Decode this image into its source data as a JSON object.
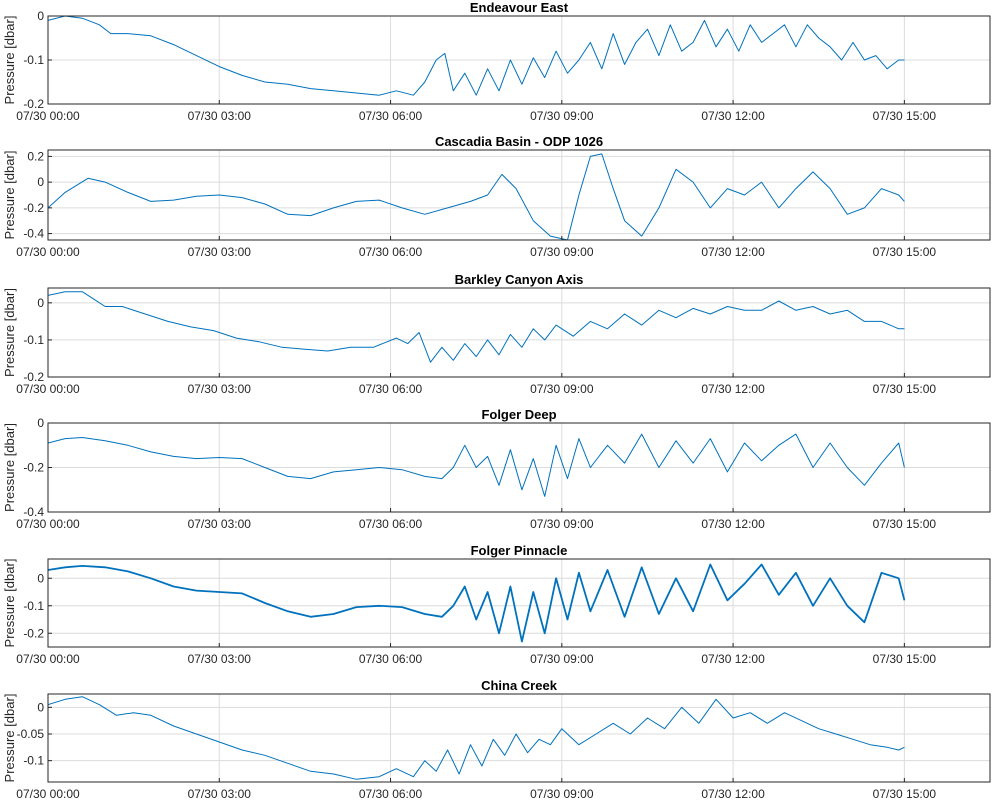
{
  "figure": {
    "series_color": "#0072BD",
    "grid_color": "#dcdcdc",
    "axes_color": "#262626"
  },
  "chart_data": [
    {
      "type": "line",
      "title": "Endeavour East",
      "ylabel": "Pressure [dbar]",
      "xlabel": "",
      "grid": true,
      "x_unit": "hours since 07/30 00:00",
      "xlim": [
        0,
        16.5
      ],
      "ylim": [
        -0.2,
        0
      ],
      "xticks": [
        0,
        3,
        6,
        9,
        12,
        15
      ],
      "xtick_labels": [
        "07/30 00:00",
        "07/30 03:00",
        "07/30 06:00",
        "07/30 09:00",
        "07/30 12:00",
        "07/30 15:00"
      ],
      "yticks": [
        -0.2,
        -0.1,
        0
      ],
      "ytick_labels": [
        "-0.2",
        "-0.1",
        "0"
      ],
      "series": [
        {
          "x": [
            0,
            0.3,
            0.6,
            0.9,
            1.1,
            1.4,
            1.8,
            2.2,
            2.6,
            3.0,
            3.4,
            3.8,
            4.2,
            4.6,
            5.0,
            5.4,
            5.8,
            6.1,
            6.4,
            6.6,
            6.8,
            6.95,
            7.1,
            7.3,
            7.5,
            7.7,
            7.9,
            8.1,
            8.3,
            8.5,
            8.7,
            8.9,
            9.1,
            9.3,
            9.5,
            9.7,
            9.9,
            10.1,
            10.3,
            10.5,
            10.7,
            10.9,
            11.1,
            11.3,
            11.5,
            11.7,
            11.9,
            12.1,
            12.3,
            12.5,
            12.7,
            12.9,
            13.1,
            13.3,
            13.5,
            13.7,
            13.9,
            14.1,
            14.3,
            14.5,
            14.7,
            14.9,
            15.0
          ],
          "y": [
            -0.01,
            0.0,
            -0.005,
            -0.02,
            -0.04,
            -0.04,
            -0.045,
            -0.065,
            -0.09,
            -0.115,
            -0.135,
            -0.15,
            -0.155,
            -0.165,
            -0.17,
            -0.175,
            -0.18,
            -0.17,
            -0.18,
            -0.15,
            -0.1,
            -0.085,
            -0.17,
            -0.13,
            -0.18,
            -0.12,
            -0.17,
            -0.1,
            -0.155,
            -0.095,
            -0.14,
            -0.08,
            -0.13,
            -0.1,
            -0.06,
            -0.12,
            -0.04,
            -0.11,
            -0.06,
            -0.03,
            -0.09,
            -0.02,
            -0.08,
            -0.06,
            -0.01,
            -0.07,
            -0.03,
            -0.08,
            -0.02,
            -0.06,
            -0.04,
            -0.02,
            -0.07,
            -0.02,
            -0.05,
            -0.07,
            -0.1,
            -0.06,
            -0.1,
            -0.09,
            -0.12,
            -0.1,
            -0.1
          ]
        }
      ]
    },
    {
      "type": "line",
      "title": "Cascadia Basin - ODP 1026",
      "ylabel": "Pressure [dbar]",
      "xlabel": "",
      "grid": true,
      "x_unit": "hours since 07/30 00:00",
      "xlim": [
        0,
        16.5
      ],
      "ylim": [
        -0.45,
        0.25
      ],
      "xticks": [
        0,
        3,
        6,
        9,
        12,
        15
      ],
      "xtick_labels": [
        "07/30 00:00",
        "07/30 03:00",
        "07/30 06:00",
        "07/30 09:00",
        "07/30 12:00",
        "07/30 15:00"
      ],
      "yticks": [
        -0.4,
        -0.2,
        0,
        0.2
      ],
      "ytick_labels": [
        "-0.4",
        "-0.2",
        "0",
        "0.2"
      ],
      "series": [
        {
          "x": [
            0,
            0.3,
            0.7,
            1.0,
            1.4,
            1.8,
            2.2,
            2.6,
            3.0,
            3.4,
            3.8,
            4.2,
            4.6,
            5.0,
            5.4,
            5.8,
            6.2,
            6.6,
            7.0,
            7.4,
            7.7,
            7.95,
            8.2,
            8.5,
            8.8,
            9.1,
            9.3,
            9.5,
            9.7,
            9.9,
            10.1,
            10.4,
            10.7,
            11.0,
            11.3,
            11.6,
            11.9,
            12.2,
            12.5,
            12.8,
            13.1,
            13.4,
            13.7,
            14.0,
            14.3,
            14.6,
            14.9,
            15.0
          ],
          "y": [
            -0.2,
            -0.08,
            0.03,
            0.0,
            -0.08,
            -0.15,
            -0.14,
            -0.11,
            -0.1,
            -0.12,
            -0.17,
            -0.25,
            -0.26,
            -0.2,
            -0.15,
            -0.14,
            -0.2,
            -0.25,
            -0.2,
            -0.15,
            -0.1,
            0.06,
            -0.05,
            -0.3,
            -0.42,
            -0.45,
            -0.1,
            0.2,
            0.22,
            -0.05,
            -0.3,
            -0.42,
            -0.2,
            0.1,
            0.0,
            -0.2,
            -0.05,
            -0.1,
            0.0,
            -0.2,
            -0.05,
            0.08,
            -0.05,
            -0.25,
            -0.2,
            -0.05,
            -0.1,
            -0.15
          ]
        }
      ]
    },
    {
      "type": "line",
      "title": "Barkley Canyon Axis",
      "ylabel": "Pressure [dbar]",
      "xlabel": "",
      "grid": true,
      "x_unit": "hours since 07/30 00:00",
      "xlim": [
        0,
        16.5
      ],
      "ylim": [
        -0.2,
        0.04
      ],
      "xticks": [
        0,
        3,
        6,
        9,
        12,
        15
      ],
      "xtick_labels": [
        "07/30 00:00",
        "07/30 03:00",
        "07/30 06:00",
        "07/30 09:00",
        "07/30 12:00",
        "07/30 15:00"
      ],
      "yticks": [
        -0.2,
        -0.1,
        0
      ],
      "ytick_labels": [
        "-0.2",
        "-0.1",
        "0"
      ],
      "series": [
        {
          "x": [
            0,
            0.3,
            0.6,
            0.8,
            1.0,
            1.3,
            1.7,
            2.1,
            2.5,
            2.9,
            3.3,
            3.7,
            4.1,
            4.5,
            4.9,
            5.3,
            5.7,
            6.1,
            6.3,
            6.5,
            6.7,
            6.9,
            7.1,
            7.3,
            7.5,
            7.7,
            7.9,
            8.1,
            8.3,
            8.5,
            8.7,
            8.9,
            9.2,
            9.5,
            9.8,
            10.1,
            10.4,
            10.7,
            11.0,
            11.3,
            11.6,
            11.9,
            12.2,
            12.5,
            12.8,
            13.1,
            13.4,
            13.7,
            14.0,
            14.3,
            14.6,
            14.9,
            15.0
          ],
          "y": [
            0.02,
            0.03,
            0.03,
            0.01,
            -0.01,
            -0.01,
            -0.03,
            -0.05,
            -0.065,
            -0.075,
            -0.095,
            -0.105,
            -0.12,
            -0.125,
            -0.13,
            -0.12,
            -0.12,
            -0.095,
            -0.11,
            -0.08,
            -0.16,
            -0.12,
            -0.155,
            -0.11,
            -0.145,
            -0.1,
            -0.14,
            -0.085,
            -0.12,
            -0.07,
            -0.1,
            -0.06,
            -0.09,
            -0.05,
            -0.07,
            -0.03,
            -0.06,
            -0.02,
            -0.04,
            -0.015,
            -0.03,
            -0.01,
            -0.02,
            -0.02,
            0.005,
            -0.02,
            -0.01,
            -0.03,
            -0.02,
            -0.05,
            -0.05,
            -0.07,
            -0.07
          ]
        }
      ]
    },
    {
      "type": "line",
      "title": "Folger Deep",
      "ylabel": "Pressure [dbar]",
      "xlabel": "",
      "grid": true,
      "x_unit": "hours since 07/30 00:00",
      "xlim": [
        0,
        16.5
      ],
      "ylim": [
        -0.4,
        0
      ],
      "xticks": [
        0,
        3,
        6,
        9,
        12,
        15
      ],
      "xtick_labels": [
        "07/30 00:00",
        "07/30 03:00",
        "07/30 06:00",
        "07/30 09:00",
        "07/30 12:00",
        "07/30 15:00"
      ],
      "yticks": [
        -0.4,
        -0.2,
        0
      ],
      "ytick_labels": [
        "-0.4",
        "-0.2",
        "0"
      ],
      "series": [
        {
          "x": [
            0,
            0.3,
            0.6,
            1.0,
            1.4,
            1.8,
            2.2,
            2.6,
            3.0,
            3.4,
            3.8,
            4.2,
            4.6,
            5.0,
            5.4,
            5.8,
            6.2,
            6.6,
            6.9,
            7.1,
            7.3,
            7.5,
            7.7,
            7.9,
            8.1,
            8.3,
            8.5,
            8.7,
            8.9,
            9.1,
            9.3,
            9.5,
            9.8,
            10.1,
            10.4,
            10.7,
            11.0,
            11.3,
            11.6,
            11.9,
            12.2,
            12.5,
            12.8,
            13.1,
            13.4,
            13.7,
            14.0,
            14.3,
            14.6,
            14.9,
            15.0
          ],
          "y": [
            -0.09,
            -0.07,
            -0.065,
            -0.08,
            -0.1,
            -0.13,
            -0.15,
            -0.16,
            -0.155,
            -0.16,
            -0.2,
            -0.24,
            -0.25,
            -0.22,
            -0.21,
            -0.2,
            -0.21,
            -0.24,
            -0.25,
            -0.2,
            -0.1,
            -0.2,
            -0.15,
            -0.28,
            -0.12,
            -0.3,
            -0.16,
            -0.33,
            -0.1,
            -0.25,
            -0.07,
            -0.2,
            -0.1,
            -0.18,
            -0.05,
            -0.2,
            -0.08,
            -0.18,
            -0.07,
            -0.22,
            -0.09,
            -0.17,
            -0.1,
            -0.05,
            -0.2,
            -0.09,
            -0.2,
            -0.28,
            -0.18,
            -0.09,
            -0.2
          ]
        }
      ]
    },
    {
      "type": "line",
      "title": "Folger Pinnacle",
      "ylabel": "Pressure [dbar]",
      "xlabel": "",
      "grid": true,
      "x_unit": "hours since 07/30 00:00",
      "xlim": [
        0,
        16.5
      ],
      "ylim": [
        -0.25,
        0.07
      ],
      "xticks": [
        0,
        3,
        6,
        9,
        12,
        15
      ],
      "xtick_labels": [
        "07/30 00:00",
        "07/30 03:00",
        "07/30 06:00",
        "07/30 09:00",
        "07/30 12:00",
        "07/30 15:00"
      ],
      "yticks": [
        -0.2,
        -0.1,
        0
      ],
      "ytick_labels": [
        "-0.2",
        "-0.1",
        "0"
      ],
      "series": [
        {
          "x": [
            0,
            0.3,
            0.6,
            1.0,
            1.4,
            1.8,
            2.2,
            2.6,
            3.0,
            3.4,
            3.8,
            4.2,
            4.6,
            5.0,
            5.4,
            5.8,
            6.2,
            6.6,
            6.9,
            7.1,
            7.3,
            7.5,
            7.7,
            7.9,
            8.1,
            8.3,
            8.5,
            8.7,
            8.9,
            9.1,
            9.3,
            9.5,
            9.8,
            10.1,
            10.4,
            10.7,
            11.0,
            11.3,
            11.6,
            11.9,
            12.2,
            12.5,
            12.8,
            13.1,
            13.4,
            13.7,
            14.0,
            14.3,
            14.6,
            14.9,
            15.0
          ],
          "y": [
            0.03,
            0.04,
            0.045,
            0.04,
            0.025,
            0.0,
            -0.03,
            -0.045,
            -0.05,
            -0.055,
            -0.09,
            -0.12,
            -0.14,
            -0.13,
            -0.105,
            -0.1,
            -0.105,
            -0.13,
            -0.14,
            -0.1,
            -0.03,
            -0.15,
            -0.05,
            -0.2,
            -0.03,
            -0.23,
            -0.05,
            -0.2,
            0.0,
            -0.15,
            0.02,
            -0.12,
            0.03,
            -0.14,
            0.04,
            -0.13,
            0.0,
            -0.12,
            0.05,
            -0.08,
            -0.02,
            0.05,
            -0.06,
            0.02,
            -0.1,
            0.0,
            -0.1,
            -0.16,
            0.02,
            0.0,
            -0.08
          ]
        }
      ]
    },
    {
      "type": "line",
      "title": "China Creek",
      "ylabel": "Pressure [dbar]",
      "xlabel": "",
      "grid": true,
      "x_unit": "hours since 07/30 00:00",
      "xlim": [
        0,
        16.5
      ],
      "ylim": [
        -0.14,
        0.025
      ],
      "xticks": [
        0,
        3,
        6,
        9,
        12,
        15
      ],
      "xtick_labels": [
        "07/30 00:00",
        "07/30 03:00",
        "07/30 06:00",
        "07/30 09:00",
        "07/30 12:00",
        "07/30 15:00"
      ],
      "yticks": [
        -0.1,
        -0.05,
        0
      ],
      "ytick_labels": [
        "-0.1",
        "-0.05",
        "0"
      ],
      "series": [
        {
          "x": [
            0,
            0.3,
            0.6,
            0.9,
            1.2,
            1.5,
            1.8,
            2.2,
            2.6,
            3.0,
            3.4,
            3.8,
            4.2,
            4.6,
            5.0,
            5.4,
            5.8,
            6.1,
            6.4,
            6.6,
            6.8,
            7.0,
            7.2,
            7.4,
            7.6,
            7.8,
            8.0,
            8.2,
            8.4,
            8.6,
            8.8,
            9.0,
            9.3,
            9.6,
            9.9,
            10.2,
            10.5,
            10.8,
            11.1,
            11.4,
            11.7,
            12.0,
            12.3,
            12.6,
            12.9,
            13.2,
            13.5,
            13.8,
            14.1,
            14.4,
            14.7,
            14.9,
            15.0
          ],
          "y": [
            0.005,
            0.015,
            0.02,
            0.005,
            -0.015,
            -0.01,
            -0.015,
            -0.035,
            -0.05,
            -0.065,
            -0.08,
            -0.09,
            -0.105,
            -0.12,
            -0.125,
            -0.135,
            -0.13,
            -0.115,
            -0.13,
            -0.1,
            -0.12,
            -0.08,
            -0.125,
            -0.07,
            -0.11,
            -0.06,
            -0.09,
            -0.05,
            -0.085,
            -0.06,
            -0.07,
            -0.04,
            -0.07,
            -0.05,
            -0.03,
            -0.05,
            -0.02,
            -0.04,
            0.0,
            -0.03,
            0.015,
            -0.02,
            -0.01,
            -0.03,
            -0.01,
            -0.025,
            -0.04,
            -0.05,
            -0.06,
            -0.07,
            -0.075,
            -0.08,
            -0.075
          ]
        }
      ]
    }
  ]
}
